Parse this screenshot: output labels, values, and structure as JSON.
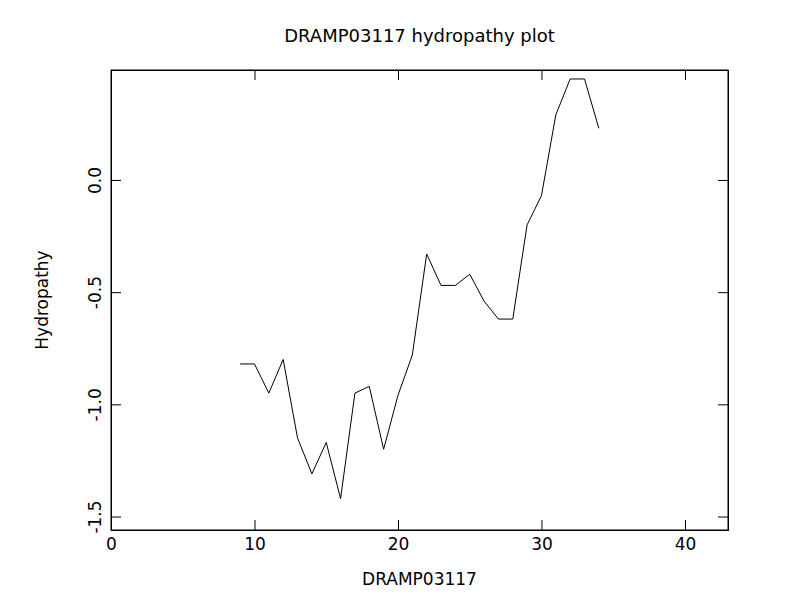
{
  "chart_data": {
    "type": "line",
    "title": "DRAMP03117 hydropathy plot",
    "x_label": "DRAMP03117",
    "y_label": "Hydropathy",
    "x": [
      9,
      10,
      11,
      12,
      13,
      14,
      15,
      16,
      17,
      18,
      19,
      20,
      21,
      22,
      23,
      24,
      25,
      26,
      27,
      28,
      29,
      30,
      31,
      32,
      33,
      34
    ],
    "values": [
      -0.82,
      -0.82,
      -0.95,
      -0.8,
      -1.15,
      -1.31,
      -1.17,
      -1.42,
      -0.95,
      -0.92,
      -1.2,
      -0.96,
      -0.78,
      -0.33,
      -0.47,
      -0.47,
      -0.42,
      -0.54,
      -0.62,
      -0.62,
      -0.2,
      -0.07,
      0.29,
      0.45,
      0.45,
      0.23
    ],
    "color": "#000000",
    "xlim": [
      0,
      43
    ],
    "xticks": [
      0,
      10,
      20,
      30,
      40
    ],
    "ylim": [
      -1.56,
      0.49
    ],
    "yticks": [
      -1.5,
      {
        "value": -1,
        "label": "-1.0"
      },
      -0.5,
      {
        "value": 0,
        "label": "0.0"
      }
    ],
    "grid": false
  }
}
